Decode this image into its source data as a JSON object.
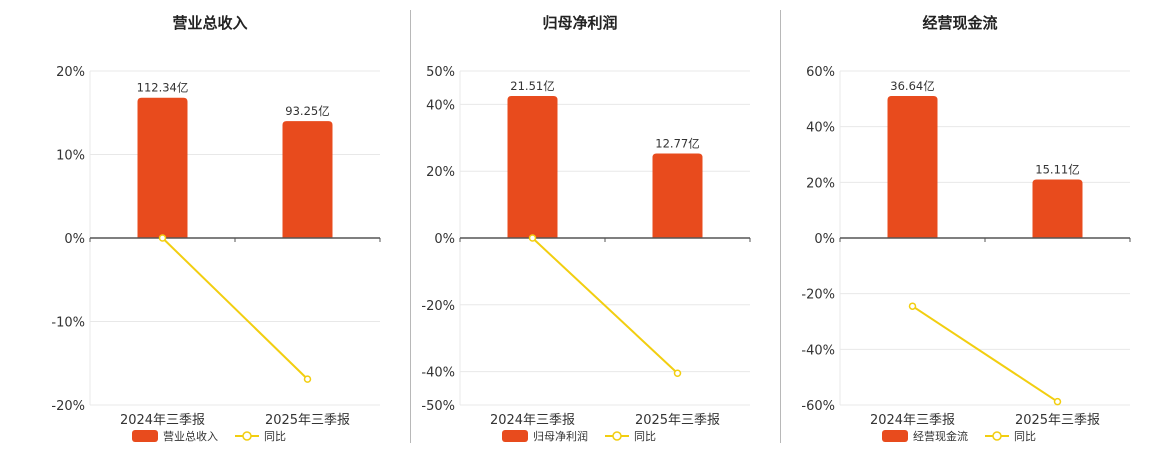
{
  "colors": {
    "bar": "#E84B1D",
    "line": "#F2CE10",
    "grid": "#e8e8e8",
    "axis": "#555555"
  },
  "chart_data": [
    {
      "type": "bar",
      "title": "营业总收入",
      "categories": [
        "2024年三季报",
        "2025年三季报"
      ],
      "series": [
        {
          "name": "营业总收入",
          "type": "bar",
          "values": [
            16.8,
            14.0
          ],
          "labels": [
            "112.34亿",
            "93.25亿"
          ]
        },
        {
          "name": "同比",
          "type": "line",
          "values": [
            0,
            -16.9
          ]
        }
      ],
      "ylim": [
        -20,
        20
      ],
      "yticks": [
        -20,
        -10,
        0,
        10,
        20
      ],
      "ytick_labels": [
        "-20%",
        "-10%",
        "0%",
        "10%",
        "20%"
      ],
      "legend": "bottom",
      "grid": true
    },
    {
      "type": "bar",
      "title": "归母净利润",
      "categories": [
        "2024年三季报",
        "2025年三季报"
      ],
      "series": [
        {
          "name": "归母净利润",
          "type": "bar",
          "values": [
            42.5,
            25.3
          ],
          "labels": [
            "21.51亿",
            "12.77亿"
          ]
        },
        {
          "name": "同比",
          "type": "line",
          "values": [
            0,
            -40.5
          ]
        }
      ],
      "ylim": [
        -50,
        50
      ],
      "yticks": [
        -50,
        -40,
        -20,
        0,
        20,
        40,
        50
      ],
      "ytick_labels": [
        "-50%",
        "-40%",
        "-20%",
        "0%",
        "20%",
        "40%",
        "50%"
      ],
      "legend": "bottom",
      "grid": true
    },
    {
      "type": "bar",
      "title": "经营现金流",
      "categories": [
        "2024年三季报",
        "2025年三季报"
      ],
      "series": [
        {
          "name": "经营现金流",
          "type": "bar",
          "values": [
            51.0,
            21.0
          ],
          "labels": [
            "36.64亿",
            "15.11亿"
          ]
        },
        {
          "name": "同比",
          "type": "line",
          "values": [
            -24.5,
            -58.8
          ]
        }
      ],
      "ylim": [
        -60,
        60
      ],
      "yticks": [
        -60,
        -40,
        -20,
        0,
        20,
        40,
        60
      ],
      "ytick_labels": [
        "-60%",
        "-40%",
        "-20%",
        "0%",
        "20%",
        "40%",
        "60%"
      ],
      "legend": "bottom",
      "grid": true
    }
  ]
}
